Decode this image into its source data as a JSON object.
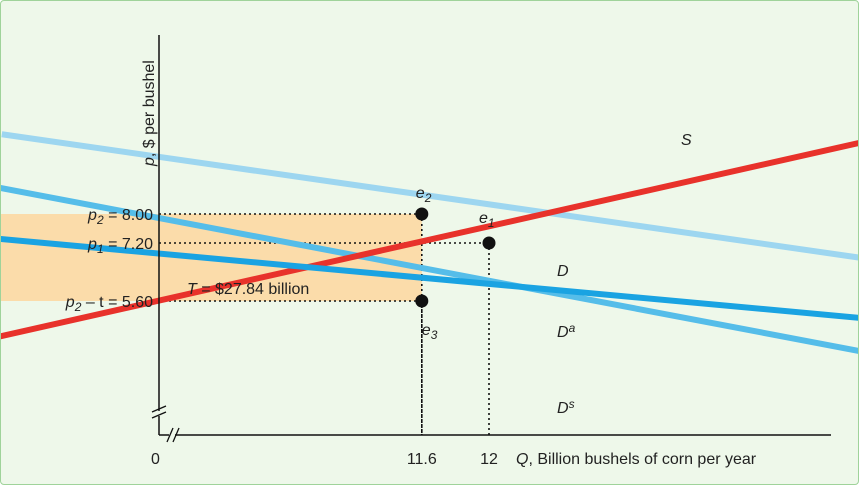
{
  "chart_data": {
    "type": "line",
    "ylabel_var": "p",
    "ylabel_rest": ", $ per bushel",
    "xlabel_var": "Q",
    "xlabel_rest": ", Billion bushels of corn per year",
    "origin_label": "0",
    "axis_break": true,
    "colors": {
      "supply": "#e8322b",
      "demand_total": "#9dd6f0",
      "demand_agri": "#1aa3e2",
      "demand_subsidy": "#55bde9",
      "tax_region": "#fbdcaa",
      "background": "#eef8ea",
      "border": "#9fd39a"
    },
    "series": [
      {
        "name": "S",
        "name_sup": "",
        "points": [
          [
            8.3,
            3.8
          ],
          [
            15.2,
            11.0
          ]
        ]
      },
      {
        "name": "D",
        "name_sup": "",
        "points": [
          [
            9.1,
            10.2
          ],
          [
            21.1,
            2.2
          ]
        ]
      },
      {
        "name": "D",
        "name_sup": "a",
        "points": [
          [
            9.0,
            7.35
          ],
          [
            21.1,
            2.2
          ]
        ]
      },
      {
        "name": "D",
        "name_sup": "s",
        "points": [
          [
            9.0,
            8.8
          ],
          [
            16.5,
            2.2
          ]
        ]
      }
    ],
    "equilibria": [
      {
        "label": "e",
        "sub": "1",
        "x": 12.0,
        "y": 7.2
      },
      {
        "label": "e",
        "sub": "2",
        "x": 11.6,
        "y": 8.0
      },
      {
        "label": "e",
        "sub": "3",
        "x": 11.6,
        "y": 5.6
      }
    ],
    "y_ticks": [
      {
        "var": "p",
        "sub": "2",
        "rest": " = 8.00",
        "value": 8.0
      },
      {
        "var": "p",
        "sub": "1",
        "rest": " = 7.20",
        "value": 7.2
      },
      {
        "var": "p",
        "sub": "2",
        "rest": " – t = 5.60",
        "value": 5.6
      }
    ],
    "x_ticks": [
      {
        "label": "11.6",
        "value": 11.6
      },
      {
        "label": "12",
        "value": 12.0
      }
    ],
    "tax_region": {
      "x0": 8.0,
      "x1": 11.6,
      "y0": 5.6,
      "y1": 8.0
    },
    "tax_label_var": "T",
    "tax_label_rest": " = $27.84 billion"
  }
}
